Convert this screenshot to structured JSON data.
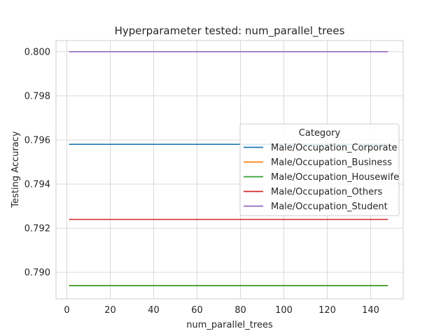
{
  "chart_data": {
    "type": "line",
    "title": "Hyperparameter tested: num_parallel_trees",
    "xlabel": "num_parallel_trees",
    "ylabel": "Testing Accuracy",
    "xlim": [
      -5,
      155
    ],
    "ylim": [
      0.7888,
      0.8005
    ],
    "xticks": [
      0,
      20,
      40,
      60,
      80,
      100,
      120,
      140
    ],
    "yticks": [
      0.79,
      0.792,
      0.794,
      0.796,
      0.798,
      0.8
    ],
    "ytick_labels": [
      "0.790",
      "0.792",
      "0.794",
      "0.796",
      "0.798",
      "0.800"
    ],
    "grid": true,
    "legend": {
      "title": "Category",
      "placement": "center-right"
    },
    "series": [
      {
        "name": "Male/Occupation_Corporate",
        "color": "#1f77b4",
        "x": [
          1,
          148
        ],
        "y": [
          0.7958,
          0.7958
        ]
      },
      {
        "name": "Male/Occupation_Business",
        "color": "#ff7f0e",
        "x": [
          1,
          148
        ],
        "y": [
          0.7894,
          0.7894
        ]
      },
      {
        "name": "Male/Occupation_Housewife",
        "color": "#2ca02c",
        "x": [
          1,
          148
        ],
        "y": [
          0.7894,
          0.7894
        ]
      },
      {
        "name": "Male/Occupation_Others",
        "color": "#d62728",
        "x": [
          1,
          148
        ],
        "y": [
          0.7924,
          0.7924
        ]
      },
      {
        "name": "Male/Occupation_Student",
        "color": "#9467bd",
        "x": [
          1,
          148
        ],
        "y": [
          0.8,
          0.8
        ]
      }
    ]
  }
}
